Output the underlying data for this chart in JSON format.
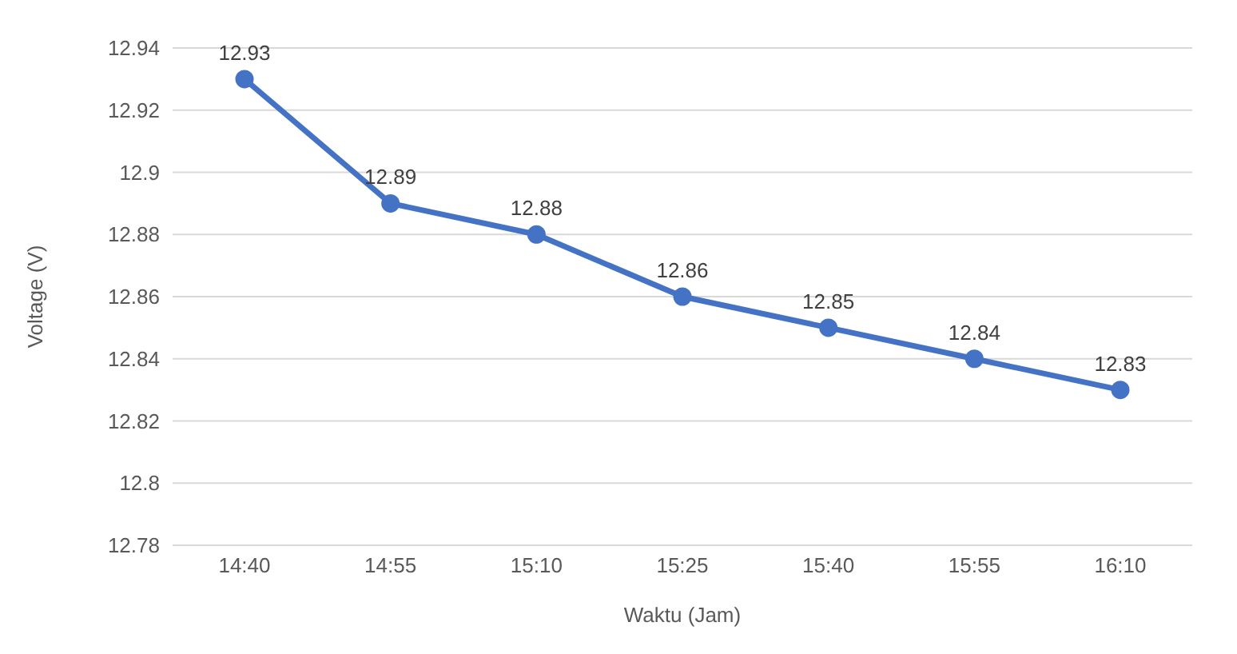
{
  "chart_data": {
    "type": "line",
    "xlabel": "Waktu (Jam)",
    "ylabel": "Voltage (V)",
    "categories": [
      "14:40",
      "14:55",
      "15:10",
      "15:25",
      "15:40",
      "15:55",
      "16:10"
    ],
    "series": [
      {
        "color": "#4472c4",
        "values": [
          12.93,
          12.89,
          12.88,
          12.86,
          12.85,
          12.84,
          12.83
        ]
      }
    ],
    "ylim": [
      12.78,
      12.94
    ],
    "yticks": [
      12.78,
      12.8,
      12.82,
      12.84,
      12.86,
      12.88,
      12.9,
      12.92,
      12.94
    ],
    "grid": "y",
    "marker": "circle",
    "data_labels": true,
    "legend": false
  }
}
